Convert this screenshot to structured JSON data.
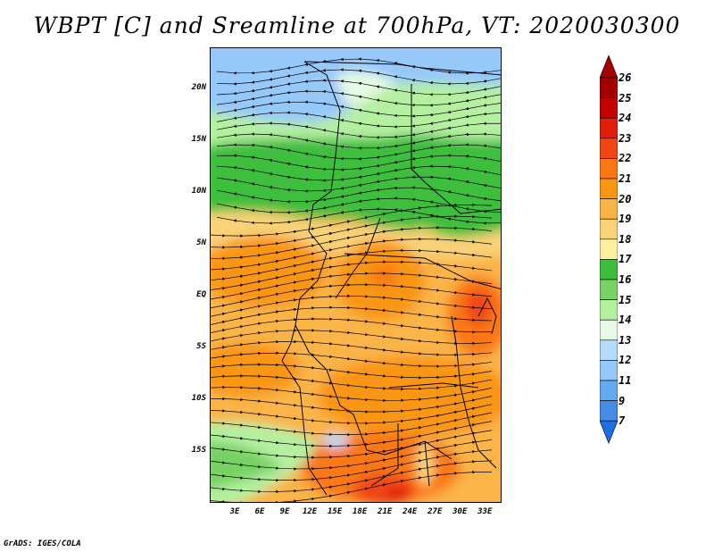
{
  "title": "WBPT [C] and Sreamline at 700hPa, VT: 2020030300",
  "credit": "GrADS: IGES/COLA",
  "axes": {
    "lat_labels": [
      {
        "text": "20N",
        "lat": 20
      },
      {
        "text": "15N",
        "lat": 15
      },
      {
        "text": "10N",
        "lat": 10
      },
      {
        "text": "5N",
        "lat": 5
      },
      {
        "text": "EQ",
        "lat": 0
      },
      {
        "text": "5S",
        "lat": -5
      },
      {
        "text": "10S",
        "lat": -10
      },
      {
        "text": "15S",
        "lat": -15
      }
    ],
    "lon_labels": [
      {
        "text": "3E",
        "lon": 3
      },
      {
        "text": "6E",
        "lon": 6
      },
      {
        "text": "9E",
        "lon": 9
      },
      {
        "text": "12E",
        "lon": 12
      },
      {
        "text": "15E",
        "lon": 15
      },
      {
        "text": "18E",
        "lon": 18
      },
      {
        "text": "21E",
        "lon": 21
      },
      {
        "text": "24E",
        "lon": 24
      },
      {
        "text": "27E",
        "lon": 27
      },
      {
        "text": "30E",
        "lon": 30
      },
      {
        "text": "33E",
        "lon": 33
      }
    ],
    "lat_range": [
      -20,
      24
    ],
    "lon_range": [
      0,
      35
    ]
  },
  "colorbar": {
    "levels": [
      {
        "label": "26",
        "color": "#a50000"
      },
      {
        "label": "25",
        "color": "#c40000"
      },
      {
        "label": "24",
        "color": "#e01e0a"
      },
      {
        "label": "23",
        "color": "#f04614"
      },
      {
        "label": "22",
        "color": "#fa7814"
      },
      {
        "label": "21",
        "color": "#fa9614"
      },
      {
        "label": "20",
        "color": "#fab446"
      },
      {
        "label": "19",
        "color": "#fad278"
      },
      {
        "label": "18",
        "color": "#fff0a0"
      },
      {
        "label": "17",
        "color": "#3cbe3c"
      },
      {
        "label": "16",
        "color": "#78d264"
      },
      {
        "label": "15",
        "color": "#b4f0a0"
      },
      {
        "label": "14",
        "color": "#e6fae6"
      },
      {
        "label": "13",
        "color": "#b4dcfa"
      },
      {
        "label": "12",
        "color": "#96c8fa"
      },
      {
        "label": "11",
        "color": "#64aaf0"
      },
      {
        "label": "9",
        "color": "#468ce6"
      },
      {
        "label": "7",
        "color": "#1e6ee6"
      }
    ],
    "over_color": "#a50000",
    "under_color": "#1e6ee6"
  }
}
